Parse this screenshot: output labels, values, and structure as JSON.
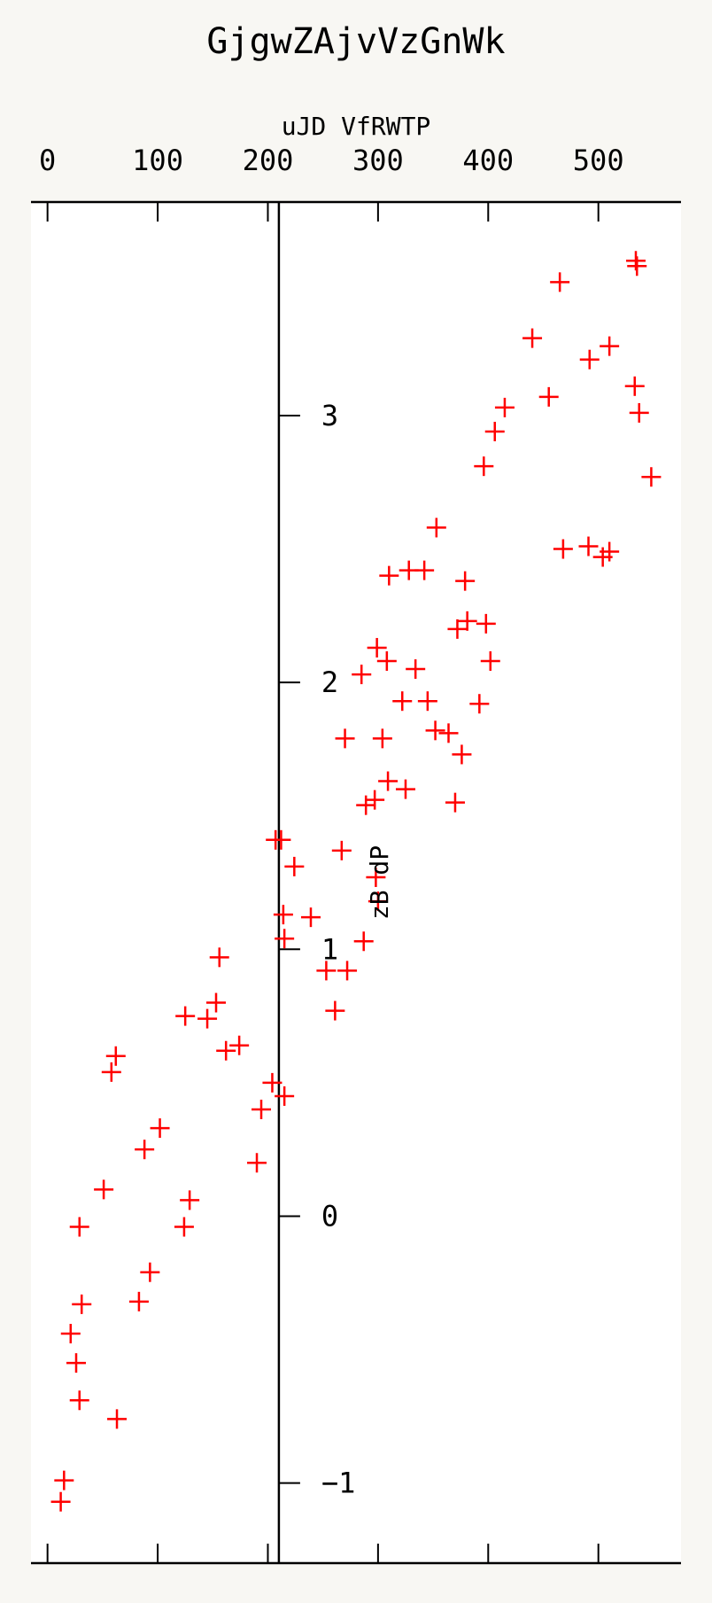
{
  "chart_data": {
    "type": "scatter",
    "title": "GjgwZAjvVzGnWk",
    "xlabel": "uJD VfRWTP",
    "ylabel": "zB dP",
    "xlim": [
      -15,
      575
    ],
    "ylim": [
      -1.3,
      3.8
    ],
    "x_ticks": [
      {
        "value": 0,
        "label": "0"
      },
      {
        "value": 100,
        "label": "100"
      },
      {
        "value": 200,
        "label": "200"
      },
      {
        "value": 300,
        "label": "300"
      },
      {
        "value": 400,
        "label": "400"
      },
      {
        "value": 500,
        "label": "500"
      }
    ],
    "y_ticks": [
      {
        "value": -1,
        "label": "−1"
      },
      {
        "value": 0,
        "label": "0"
      },
      {
        "value": 1,
        "label": "1"
      },
      {
        "value": 2,
        "label": "2"
      },
      {
        "value": 3,
        "label": "3"
      }
    ],
    "y_axis_position_x": 210,
    "x_axis_position": "top",
    "marker": "plus",
    "marker_color": "#ff0000",
    "grid": false,
    "points": [
      {
        "x": 534,
        "y": 3.58
      },
      {
        "x": 535,
        "y": 3.56
      },
      {
        "x": 465,
        "y": 3.5
      },
      {
        "x": 440,
        "y": 3.29
      },
      {
        "x": 510,
        "y": 3.26
      },
      {
        "x": 492,
        "y": 3.21
      },
      {
        "x": 455,
        "y": 3.07
      },
      {
        "x": 533,
        "y": 3.11
      },
      {
        "x": 537,
        "y": 3.01
      },
      {
        "x": 415,
        "y": 3.03
      },
      {
        "x": 406,
        "y": 2.94
      },
      {
        "x": 396,
        "y": 2.81
      },
      {
        "x": 548,
        "y": 2.77
      },
      {
        "x": 353,
        "y": 2.58
      },
      {
        "x": 468,
        "y": 2.5
      },
      {
        "x": 491,
        "y": 2.51
      },
      {
        "x": 504,
        "y": 2.47
      },
      {
        "x": 510,
        "y": 2.49
      },
      {
        "x": 310,
        "y": 2.4
      },
      {
        "x": 328,
        "y": 2.42
      },
      {
        "x": 342,
        "y": 2.42
      },
      {
        "x": 379,
        "y": 2.38
      },
      {
        "x": 381,
        "y": 2.23
      },
      {
        "x": 398,
        "y": 2.22
      },
      {
        "x": 372,
        "y": 2.2
      },
      {
        "x": 299,
        "y": 2.13
      },
      {
        "x": 308,
        "y": 2.08
      },
      {
        "x": 402,
        "y": 2.08
      },
      {
        "x": 334,
        "y": 2.05
      },
      {
        "x": 285,
        "y": 2.03
      },
      {
        "x": 322,
        "y": 1.93
      },
      {
        "x": 345,
        "y": 1.93
      },
      {
        "x": 392,
        "y": 1.92
      },
      {
        "x": 352,
        "y": 1.82
      },
      {
        "x": 364,
        "y": 1.81
      },
      {
        "x": 270,
        "y": 1.79
      },
      {
        "x": 304,
        "y": 1.79
      },
      {
        "x": 376,
        "y": 1.73
      },
      {
        "x": 309,
        "y": 1.63
      },
      {
        "x": 325,
        "y": 1.6
      },
      {
        "x": 297,
        "y": 1.56
      },
      {
        "x": 289,
        "y": 1.54
      },
      {
        "x": 370,
        "y": 1.55
      },
      {
        "x": 207,
        "y": 1.41
      },
      {
        "x": 212,
        "y": 1.41
      },
      {
        "x": 267,
        "y": 1.37
      },
      {
        "x": 224,
        "y": 1.31
      },
      {
        "x": 298,
        "y": 1.27
      },
      {
        "x": 300,
        "y": 1.18
      },
      {
        "x": 214,
        "y": 1.13
      },
      {
        "x": 239,
        "y": 1.12
      },
      {
        "x": 215,
        "y": 1.04
      },
      {
        "x": 287,
        "y": 1.03
      },
      {
        "x": 156,
        "y": 0.97
      },
      {
        "x": 253,
        "y": 0.92
      },
      {
        "x": 272,
        "y": 0.92
      },
      {
        "x": 153,
        "y": 0.8
      },
      {
        "x": 125,
        "y": 0.75
      },
      {
        "x": 145,
        "y": 0.74
      },
      {
        "x": 261,
        "y": 0.77
      },
      {
        "x": 174,
        "y": 0.64
      },
      {
        "x": 162,
        "y": 0.62
      },
      {
        "x": 62,
        "y": 0.6
      },
      {
        "x": 58,
        "y": 0.54
      },
      {
        "x": 204,
        "y": 0.5
      },
      {
        "x": 215,
        "y": 0.45
      },
      {
        "x": 194,
        "y": 0.4
      },
      {
        "x": 102,
        "y": 0.33
      },
      {
        "x": 88,
        "y": 0.25
      },
      {
        "x": 190,
        "y": 0.2
      },
      {
        "x": 51,
        "y": 0.1
      },
      {
        "x": 129,
        "y": 0.06
      },
      {
        "x": 29,
        "y": -0.04
      },
      {
        "x": 124,
        "y": -0.04
      },
      {
        "x": 93,
        "y": -0.21
      },
      {
        "x": 31,
        "y": -0.33
      },
      {
        "x": 83,
        "y": -0.32
      },
      {
        "x": 21,
        "y": -0.44
      },
      {
        "x": 26,
        "y": -0.55
      },
      {
        "x": 29,
        "y": -0.69
      },
      {
        "x": 63,
        "y": -0.76
      },
      {
        "x": 15,
        "y": -0.99
      },
      {
        "x": 12,
        "y": -1.07
      }
    ]
  }
}
